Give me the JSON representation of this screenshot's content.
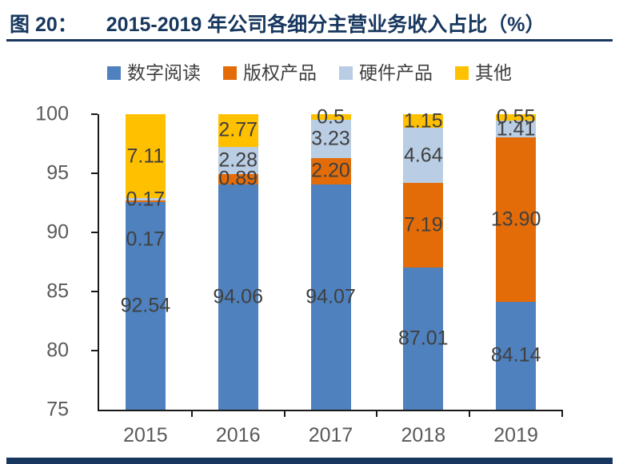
{
  "header": {
    "figure_label": "图 20：",
    "title": "2015-2019 年公司各细分主营业务收入占比（%）"
  },
  "colors": {
    "navy_rule": "#17375e",
    "axis_text": "#595959",
    "data_label_text": "#404040",
    "axis_line": "#1a1a1a"
  },
  "chart_data": {
    "type": "bar",
    "stacked": true,
    "title": "2015-2019 年公司各细分主营业务收入占比（%）",
    "categories": [
      "2015",
      "2016",
      "2017",
      "2018",
      "2019"
    ],
    "series": [
      {
        "name": "数字阅读",
        "color": "#4e81bd",
        "values": [
          92.54,
          94.06,
          94.07,
          87.01,
          84.14
        ],
        "labels": [
          "92.54",
          "94.06",
          "94.07",
          "87.01",
          "84.14"
        ]
      },
      {
        "name": "版权产品",
        "color": "#e36c09",
        "values": [
          0.17,
          0.89,
          2.2,
          7.19,
          13.9
        ],
        "labels": [
          "0.17",
          "0.89",
          "2.20",
          "7.19",
          "13.90"
        ]
      },
      {
        "name": "硬件产品",
        "color": "#b9cde4",
        "values": [
          0.17,
          2.28,
          3.23,
          4.64,
          1.41
        ],
        "labels": [
          "0.17",
          "2.28",
          "3.23",
          "4.64",
          "1.41"
        ]
      },
      {
        "name": "其他",
        "color": "#ffc000",
        "values": [
          7.11,
          2.77,
          0.5,
          1.15,
          0.55
        ],
        "labels": [
          "7.11",
          "2.77",
          "0.5",
          "1.15",
          "0.55"
        ]
      }
    ],
    "xlabel": "",
    "ylabel": "",
    "ylim": [
      75,
      100
    ],
    "ytick_step": 5,
    "grid": false,
    "legend_position": "top"
  }
}
